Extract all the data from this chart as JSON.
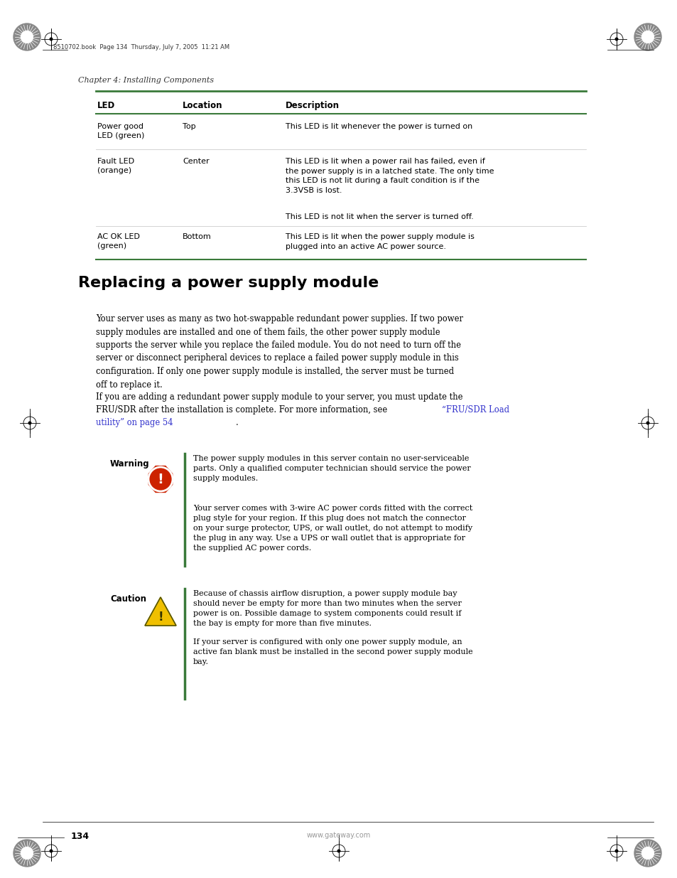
{
  "page_bg": "#ffffff",
  "page_width": 9.54,
  "page_height": 12.35,
  "dpi": 100,
  "header_text": "8510702.book  Page 134  Thursday, July 7, 2005  11:21 AM",
  "chapter_text": "Chapter 4: Installing Components",
  "table_header_cols": [
    "LED",
    "Location",
    "Description"
  ],
  "table_header_line_color": "#3a7a3a",
  "table_line_color": "#cccccc",
  "section_title": "Replacing a power supply module",
  "body_para1": "Your server uses as many as two hot-swappable redundant power supplies. If two power\nsupply modules are installed and one of them fails, the other power supply module\nsupports the server while you replace the failed module. You do not need to turn off the\nserver or disconnect peripheral devices to replace a failed power supply module in this\nconfiguration. If only one power supply module is installed, the server must be turned\noff to replace it.",
  "body_para2_pre": "If you are adding a redundant power supply module to your server, you must update the\nFRU/SDR after the installation is complete. For more information, see ",
  "body_para2_link": "“FRU/SDR Load\nutility” on page 54",
  "body_para2_post": ".",
  "warning_label": "Warning",
  "warning_text1": "The power supply modules in this server contain no user-serviceable\nparts. Only a qualified computer technician should service the power\nsupply modules.",
  "warning_text2": "Your server comes with 3-wire AC power cords fitted with the correct\nplug style for your region. If this plug does not match the connector\non your surge protector, UPS, or wall outlet, do not attempt to modify\nthe plug in any way. Use a UPS or wall outlet that is appropriate for\nthe supplied AC power cords.",
  "caution_label": "Caution",
  "caution_text1": "Because of chassis airflow disruption, a power supply module bay\nshould never be empty for more than two minutes when the server\npower is on. Possible damage to system components could result if\nthe bay is empty for more than five minutes.",
  "caution_text2": "If your server is configured with only one power supply module, an\nactive fan blank must be installed in the second power supply module\nbay.",
  "footer_page": "134",
  "footer_url": "www.gateway.com",
  "green_bar_color": "#3a7a3a",
  "link_color": "#3333cc",
  "text_color": "#000000",
  "gray_text": "#999999"
}
